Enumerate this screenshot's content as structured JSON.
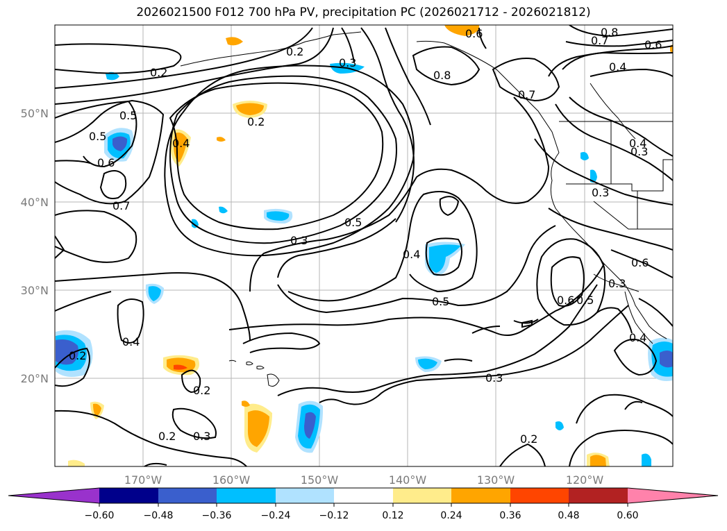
{
  "title": "2026021500 F012 700 hPa PV, precipitation PC (2026021712 - 2026021812)",
  "axes": {
    "lat_labels": [
      "50°N",
      "40°N",
      "30°N",
      "20°N"
    ],
    "lon_labels": [
      "170°W",
      "160°W",
      "150°W",
      "140°W",
      "130°W",
      "120°W"
    ]
  },
  "contour_labels": [
    "0.8",
    "0.6",
    "0.2",
    "0.3",
    "0.6",
    "0.8",
    "0.7",
    "0.6",
    "0.4",
    "0.2",
    "0.5",
    "0.5",
    "0.6",
    "0.4",
    "0.2",
    "0.7",
    "0.3",
    "0.3",
    "0.5",
    "0.4",
    "0.3",
    "0.5",
    "0.6",
    "0.5",
    "0.4",
    "0.3",
    "0.2",
    "0.4",
    "0.2",
    "0.3",
    "0.2",
    "0.3",
    "0.2",
    "0.4",
    "0.7"
  ],
  "colorbar": {
    "ticks": [
      "−0.60",
      "−0.48",
      "−0.36",
      "−0.24",
      "−0.12",
      "0.12",
      "0.24",
      "0.36",
      "0.48",
      "0.60"
    ],
    "colors": [
      "#9932cc",
      "#00008b",
      "#3a5fcd",
      "#00bfff",
      "#b0e2ff",
      "#ffffff",
      "#ffec8b",
      "#ffa500",
      "#ff4500",
      "#b22222",
      "#ff82ab"
    ]
  }
}
